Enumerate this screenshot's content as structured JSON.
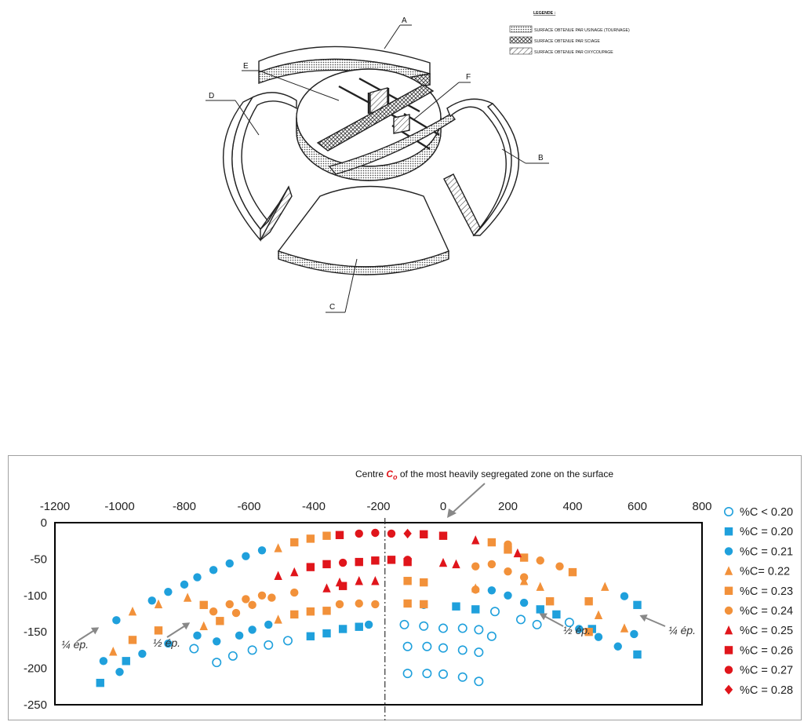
{
  "diagram": {
    "labels": {
      "a": "A",
      "b": "B",
      "c": "C",
      "d": "D",
      "e": "E",
      "f": "F"
    },
    "legend": {
      "title": "LEGENDE :",
      "items": [
        {
          "text": "SURFACE OBTENUE PAR USINAGE (TOURNAGE)",
          "pattern": "dots"
        },
        {
          "text": "SURFACE OBTENUE PAR SCIAGE",
          "pattern": "cross"
        },
        {
          "text": "SURFACE OBTENUE PAR OXYCOUPAGE",
          "pattern": "hatch"
        }
      ]
    }
  },
  "chart_data": {
    "type": "scatter",
    "annotation_title_prefix": "Centre ",
    "annotation_title_symbol": "C",
    "annotation_title_sub": "o",
    "annotation_title_suffix": " of the most heavily segregated zone on the surface",
    "xlim": [
      -1200,
      800
    ],
    "ylim": [
      -250,
      0
    ],
    "x_ticks": [
      "-1200",
      "-1000",
      "-800",
      "-600",
      "-400",
      "-200",
      "0",
      "200",
      "400",
      "600",
      "800"
    ],
    "y_ticks": [
      "0",
      "-50",
      "-100",
      "-150",
      "-200",
      "-250"
    ],
    "centre_line_x": -180,
    "annotations": [
      "¼ ép.",
      "½ ép.",
      "½ ép.",
      "¼ ép."
    ],
    "colors": {
      "blue": "#1fa0dc",
      "orange": "#f2913a",
      "red": "#e0151b",
      "grey": "#888888"
    },
    "series": [
      {
        "name": "%C < 0.20",
        "marker": "circle-open",
        "color": "#1fa0dc",
        "points": [
          [
            -770,
            -173
          ],
          [
            -700,
            -192
          ],
          [
            -650,
            -183
          ],
          [
            -590,
            -175
          ],
          [
            -540,
            -168
          ],
          [
            -480,
            -162
          ],
          [
            -120,
            -140
          ],
          [
            -60,
            -142
          ],
          [
            0,
            -145
          ],
          [
            60,
            -145
          ],
          [
            110,
            -147
          ],
          [
            150,
            -156
          ],
          [
            160,
            -122
          ],
          [
            240,
            -133
          ],
          [
            290,
            -140
          ],
          [
            390,
            -137
          ],
          [
            -110,
            -170
          ],
          [
            -50,
            -170
          ],
          [
            0,
            -172
          ],
          [
            60,
            -175
          ],
          [
            110,
            -178
          ],
          [
            -110,
            -207
          ],
          [
            -50,
            -207
          ],
          [
            0,
            -208
          ],
          [
            60,
            -212
          ],
          [
            110,
            -218
          ]
        ]
      },
      {
        "name": "%C = 0.20",
        "marker": "square",
        "color": "#1fa0dc",
        "points": [
          [
            -1060,
            -220
          ],
          [
            -980,
            -190
          ],
          [
            -410,
            -156
          ],
          [
            -360,
            -152
          ],
          [
            -310,
            -146
          ],
          [
            -260,
            -143
          ],
          [
            40,
            -115
          ],
          [
            100,
            -119
          ],
          [
            300,
            -119
          ],
          [
            350,
            -126
          ],
          [
            460,
            -146
          ],
          [
            600,
            -181
          ],
          [
            600,
            -113
          ]
        ]
      },
      {
        "name": "%C = 0.21",
        "marker": "circle",
        "color": "#1fa0dc",
        "points": [
          [
            -1050,
            -190
          ],
          [
            -1000,
            -205
          ],
          [
            -1010,
            -134
          ],
          [
            -930,
            -180
          ],
          [
            -850,
            -166
          ],
          [
            -760,
            -155
          ],
          [
            -700,
            -163
          ],
          [
            -630,
            -155
          ],
          [
            -590,
            -147
          ],
          [
            -540,
            -140
          ],
          [
            -230,
            -140
          ],
          [
            -60,
            -113
          ],
          [
            150,
            -93
          ],
          [
            200,
            -100
          ],
          [
            250,
            -110
          ],
          [
            420,
            -146
          ],
          [
            480,
            -157
          ],
          [
            540,
            -170
          ],
          [
            590,
            -153
          ],
          [
            560,
            -101
          ],
          [
            -900,
            -107
          ],
          [
            -850,
            -95
          ],
          [
            -800,
            -85
          ],
          [
            -760,
            -75
          ],
          [
            -710,
            -65
          ],
          [
            -660,
            -56
          ],
          [
            -610,
            -46
          ],
          [
            -560,
            -38
          ]
        ]
      },
      {
        "name": "%C= 0.22",
        "marker": "triangle",
        "color": "#f2913a",
        "points": [
          [
            -1020,
            -177
          ],
          [
            -960,
            -122
          ],
          [
            -880,
            -112
          ],
          [
            -790,
            -103
          ],
          [
            -740,
            -142
          ],
          [
            -510,
            -35
          ],
          [
            -510,
            -133
          ],
          [
            100,
            -90
          ],
          [
            250,
            -80
          ],
          [
            300,
            -88
          ],
          [
            480,
            -127
          ],
          [
            500,
            -88
          ],
          [
            560,
            -145
          ]
        ]
      },
      {
        "name": "%C = 0.23",
        "marker": "square",
        "color": "#f2913a",
        "points": [
          [
            -960,
            -161
          ],
          [
            -880,
            -148
          ],
          [
            -740,
            -113
          ],
          [
            -690,
            -135
          ],
          [
            -460,
            -27
          ],
          [
            -410,
            -22
          ],
          [
            -360,
            -18
          ],
          [
            -460,
            -126
          ],
          [
            -410,
            -122
          ],
          [
            -360,
            -121
          ],
          [
            -110,
            -80
          ],
          [
            -60,
            -82
          ],
          [
            -110,
            -111
          ],
          [
            -60,
            -112
          ],
          [
            150,
            -27
          ],
          [
            200,
            -37
          ],
          [
            250,
            -48
          ],
          [
            330,
            -108
          ],
          [
            400,
            -68
          ],
          [
            450,
            -108
          ],
          [
            450,
            -150
          ]
        ]
      },
      {
        "name": "%C = 0.24",
        "marker": "circle",
        "color": "#f2913a",
        "points": [
          [
            -710,
            -122
          ],
          [
            -660,
            -112
          ],
          [
            -610,
            -105
          ],
          [
            -560,
            -100
          ],
          [
            -460,
            -96
          ],
          [
            -320,
            -112
          ],
          [
            -260,
            -111
          ],
          [
            -210,
            -112
          ],
          [
            -640,
            -124
          ],
          [
            -590,
            -113
          ],
          [
            -530,
            -103
          ],
          [
            100,
            -60
          ],
          [
            150,
            -57
          ],
          [
            200,
            -67
          ],
          [
            250,
            -75
          ],
          [
            100,
            -92
          ],
          [
            200,
            -30
          ],
          [
            300,
            -52
          ],
          [
            360,
            -60
          ]
        ]
      },
      {
        "name": "%C = 0.25",
        "marker": "triangle",
        "color": "#e0151b",
        "points": [
          [
            -510,
            -73
          ],
          [
            -460,
            -68
          ],
          [
            -320,
            -82
          ],
          [
            -260,
            -80
          ],
          [
            -210,
            -80
          ],
          [
            0,
            -55
          ],
          [
            40,
            -57
          ],
          [
            100,
            -24
          ],
          [
            230,
            -42
          ],
          [
            -360,
            -90
          ]
        ]
      },
      {
        "name": "%C = 0.26",
        "marker": "square",
        "color": "#e0151b",
        "points": [
          [
            -410,
            -61
          ],
          [
            -360,
            -57
          ],
          [
            -320,
            -17
          ],
          [
            -260,
            -54
          ],
          [
            -210,
            -52
          ],
          [
            -160,
            -51
          ],
          [
            -60,
            -16
          ],
          [
            0,
            -18
          ],
          [
            -110,
            -54
          ],
          [
            -310,
            -87
          ]
        ]
      },
      {
        "name": "%C = 0.27",
        "marker": "circle",
        "color": "#e0151b",
        "points": [
          [
            -260,
            -15
          ],
          [
            -210,
            -14
          ],
          [
            -310,
            -55
          ],
          [
            -160,
            -15
          ],
          [
            -110,
            -51
          ]
        ]
      },
      {
        "name": "%C = 0.28",
        "marker": "diamond",
        "color": "#e0151b",
        "points": [
          [
            -110,
            -15
          ]
        ]
      }
    ]
  }
}
